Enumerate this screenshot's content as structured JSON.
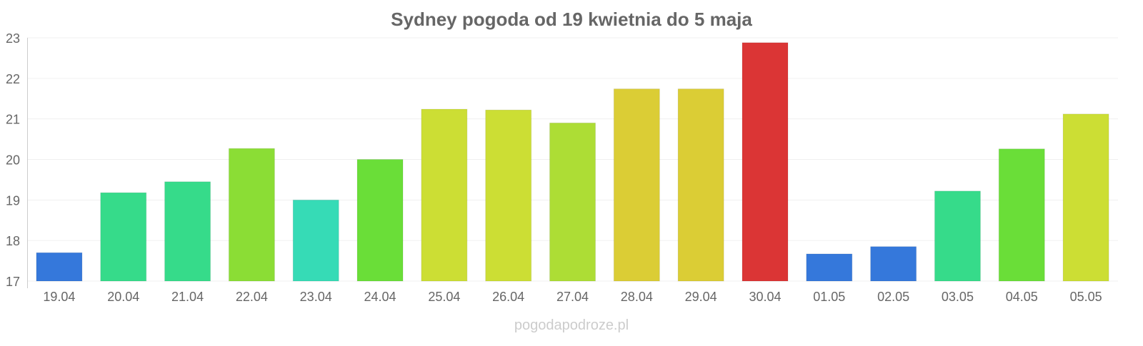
{
  "chart_data": {
    "type": "bar",
    "title": "Sydney pogoda od 19 kwietnia do 5 maja",
    "xlabel": "",
    "ylabel": "",
    "ylim": [
      17,
      23
    ],
    "yticks": [
      "17",
      "18",
      "19",
      "20",
      "21",
      "22",
      "23"
    ],
    "grid": true,
    "categories": [
      "19.04",
      "20.04",
      "21.04",
      "22.04",
      "23.04",
      "24.04",
      "25.04",
      "26.04",
      "27.04",
      "28.04",
      "29.04",
      "30.04",
      "01.05",
      "02.05",
      "03.05",
      "04.05",
      "05.05"
    ],
    "values": [
      17.7,
      19.18,
      19.45,
      20.27,
      19.0,
      20.0,
      21.24,
      21.22,
      20.9,
      21.74,
      21.74,
      22.88,
      17.67,
      17.85,
      19.22,
      20.26,
      21.12
    ],
    "colors": [
      "#3578db",
      "#36db8a",
      "#36db8a",
      "#8bdd35",
      "#36dbb6",
      "#6ade38",
      "#ccde34",
      "#ccde34",
      "#addd35",
      "#dbcd35",
      "#dbcd35",
      "#db3535",
      "#3578db",
      "#3578db",
      "#36db8a",
      "#6ade38",
      "#ccde34"
    ]
  },
  "footer": {
    "watermark": "pogodapodroze.pl"
  }
}
